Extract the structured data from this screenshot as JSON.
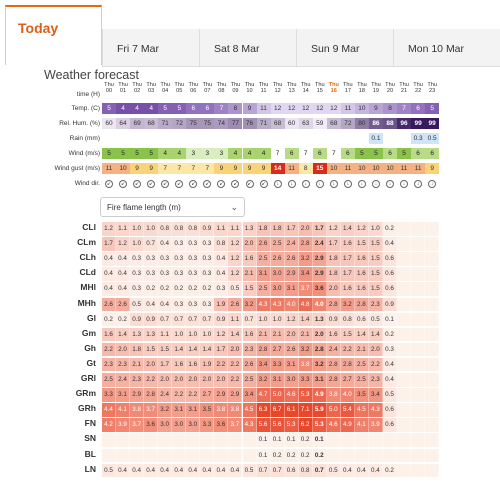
{
  "tabs": {
    "today": "Today",
    "days": [
      "Fri 7 Mar",
      "Sat 8 Mar",
      "Sun 9 Mar",
      "Mon 10 Mar"
    ]
  },
  "section_title": "Weather forecast",
  "row_labels": [
    "time (H)",
    "Temp. (C)",
    "Rel. Hum. (%)",
    "Rain (mm)",
    "Wind (m/s)",
    "Wind gust (m/s)",
    "Wind dir."
  ],
  "hours": [
    {
      "day": "Thu",
      "h": "00"
    },
    {
      "day": "Thu",
      "h": "01"
    },
    {
      "day": "Thu",
      "h": "02"
    },
    {
      "day": "Thu",
      "h": "03"
    },
    {
      "day": "Thu",
      "h": "04"
    },
    {
      "day": "Thu",
      "h": "05"
    },
    {
      "day": "Thu",
      "h": "06"
    },
    {
      "day": "Thu",
      "h": "07"
    },
    {
      "day": "Thu",
      "h": "08"
    },
    {
      "day": "Thu",
      "h": "09"
    },
    {
      "day": "Thu",
      "h": "10"
    },
    {
      "day": "Thu",
      "h": "11"
    },
    {
      "day": "Thu",
      "h": "12"
    },
    {
      "day": "Thu",
      "h": "13"
    },
    {
      "day": "Thu",
      "h": "14"
    },
    {
      "day": "Thu",
      "h": "15"
    },
    {
      "day": "Thu",
      "h": "16"
    },
    {
      "day": "Thu",
      "h": "17"
    },
    {
      "day": "Thu",
      "h": "18"
    },
    {
      "day": "Thu",
      "h": "19"
    },
    {
      "day": "Thu",
      "h": "20"
    },
    {
      "day": "Thu",
      "h": "21"
    },
    {
      "day": "Thu",
      "h": "22"
    },
    {
      "day": "Thu",
      "h": "23"
    }
  ],
  "current_hour_index": 16,
  "temp": [
    "5",
    "4",
    "4",
    "4",
    "5",
    "5",
    "6",
    "6",
    "7",
    "8",
    "9",
    "11",
    "12",
    "12",
    "12",
    "12",
    "12",
    "11",
    "10",
    "9",
    "8",
    "7",
    "6",
    "5"
  ],
  "humidity": [
    "60",
    "64",
    "69",
    "68",
    "71",
    "72",
    "75",
    "75",
    "74",
    "77",
    "76",
    "71",
    "68",
    "60",
    "63",
    "59",
    "68",
    "72",
    "80",
    "86",
    "88",
    "96",
    "99",
    "99"
  ],
  "rain": [
    "",
    "",
    "",
    "",
    "",
    "",
    "",
    "",
    "",
    "",
    "",
    "",
    "",
    "",
    "",
    "",
    "",
    "",
    "",
    "0.1",
    "",
    "",
    "0.3",
    "0.5"
  ],
  "wind": [
    "5",
    "5",
    "5",
    "5",
    "4",
    "4",
    "3",
    "3",
    "3",
    "4",
    "4",
    "4",
    "7",
    "6",
    "7",
    "6",
    "7",
    "6",
    "5",
    "5",
    "6",
    "5",
    "6",
    "6"
  ],
  "gust": [
    "11",
    "10",
    "9",
    "9",
    "7",
    "7",
    "7",
    "7",
    "9",
    "9",
    "9",
    "9",
    "14",
    "11",
    "8",
    "15",
    "10",
    "11",
    "10",
    "10",
    "10",
    "11",
    "11",
    "9"
  ],
  "wind_dir": [
    "↙",
    "↙",
    "↙",
    "↙",
    "↙",
    "↙",
    "↙",
    "↙",
    "↙",
    "↙",
    "↙",
    "↙",
    "↓",
    "↓",
    "↓",
    "↓",
    "↓",
    "↓",
    "↓",
    "↓",
    "↓",
    "↓",
    "↓",
    "↓"
  ],
  "dropdown": {
    "value": "Fire flame length (m)",
    "chevron": "⌄"
  },
  "fire_rows": [
    {
      "label": "CLl",
      "values": [
        "1.2",
        "1.1",
        "1.0",
        "1.0",
        "0.8",
        "0.8",
        "0.8",
        "0.9",
        "1.1",
        "1.1",
        "1.3",
        "1.8",
        "1.8",
        "1.7",
        "2.0",
        "1.7",
        "1.2",
        "1.4",
        "1.2",
        "1.0",
        "0.2",
        "",
        "",
        ""
      ]
    },
    {
      "label": "CLm",
      "values": [
        "1.7",
        "1.2",
        "1.0",
        "0.7",
        "0.4",
        "0.3",
        "0.3",
        "0.3",
        "0.8",
        "1.2",
        "2.0",
        "2.6",
        "2.5",
        "2.4",
        "2.8",
        "2.4",
        "1.7",
        "1.6",
        "1.5",
        "1.5",
        "0.4",
        "",
        "",
        ""
      ]
    },
    {
      "label": "CLh",
      "values": [
        "0.4",
        "0.4",
        "0.3",
        "0.3",
        "0.3",
        "0.3",
        "0.3",
        "0.3",
        "0.4",
        "1.2",
        "1.6",
        "2.5",
        "2.6",
        "2.6",
        "3.2",
        "2.9",
        "1.8",
        "1.7",
        "1.6",
        "1.5",
        "0.6",
        "",
        "",
        ""
      ]
    },
    {
      "label": "CLd",
      "values": [
        "0.4",
        "0.4",
        "0.3",
        "0.3",
        "0.3",
        "0.3",
        "0.3",
        "0.3",
        "0.4",
        "1.2",
        "2.1",
        "3.1",
        "3.0",
        "2.9",
        "3.4",
        "2.9",
        "1.8",
        "1.7",
        "1.6",
        "1.5",
        "0.6",
        "",
        "",
        ""
      ]
    },
    {
      "label": "MHl",
      "values": [
        "0.4",
        "0.4",
        "0.3",
        "0.2",
        "0.2",
        "0.2",
        "0.2",
        "0.2",
        "0.3",
        "0.5",
        "1.5",
        "2.5",
        "3.0",
        "3.1",
        "3.7",
        "3.6",
        "2.0",
        "1.6",
        "1.6",
        "1.5",
        "0.6",
        "",
        "",
        ""
      ]
    },
    {
      "label": "MHh",
      "values": [
        "2.6",
        "2.6",
        "0.5",
        "0.4",
        "0.4",
        "0.3",
        "0.3",
        "0.3",
        "1.9",
        "2.6",
        "3.2",
        "4.3",
        "4.3",
        "4.0",
        "4.8",
        "4.0",
        "2.8",
        "3.2",
        "2.8",
        "2.3",
        "0.9",
        "",
        "",
        ""
      ]
    },
    {
      "label": "Gl",
      "values": [
        "0.2",
        "0.2",
        "0.9",
        "0.9",
        "0.7",
        "0.7",
        "0.7",
        "0.7",
        "0.9",
        "1.1",
        "0.7",
        "1.0",
        "1.0",
        "1.2",
        "1.4",
        "1.3",
        "0.9",
        "0.8",
        "0.6",
        "0.5",
        "0.1",
        "",
        "",
        ""
      ]
    },
    {
      "label": "Gm",
      "values": [
        "1.6",
        "1.4",
        "1.3",
        "1.3",
        "1.1",
        "1.0",
        "1.0",
        "1.0",
        "1.2",
        "1.4",
        "1.6",
        "2.1",
        "2.1",
        "2.0",
        "2.1",
        "2.0",
        "1.6",
        "1.5",
        "1.4",
        "1.4",
        "0.2",
        "",
        "",
        ""
      ]
    },
    {
      "label": "Gh",
      "values": [
        "2.2",
        "2.0",
        "1.8",
        "1.5",
        "1.5",
        "1.4",
        "1.4",
        "1.4",
        "1.7",
        "2.0",
        "2.3",
        "2.8",
        "2.7",
        "2.6",
        "3.2",
        "2.8",
        "2.4",
        "2.2",
        "2.1",
        "2.0",
        "0.3",
        "",
        "",
        ""
      ]
    },
    {
      "label": "Gt",
      "values": [
        "2.3",
        "2.3",
        "2.1",
        "2.0",
        "1.7",
        "1.6",
        "1.6",
        "1.9",
        "2.2",
        "2.2",
        "2.6",
        "3.4",
        "3.3",
        "3.1",
        "3.8",
        "3.2",
        "2.8",
        "2.8",
        "2.5",
        "2.2",
        "0.4",
        "",
        "",
        ""
      ]
    },
    {
      "label": "GRl",
      "values": [
        "2.5",
        "2.4",
        "2.3",
        "2.2",
        "2.0",
        "2.0",
        "2.0",
        "2.0",
        "2.0",
        "2.2",
        "2.5",
        "3.2",
        "3.1",
        "3.0",
        "3.3",
        "3.1",
        "2.8",
        "2.7",
        "2.5",
        "2.3",
        "0.4",
        "",
        "",
        ""
      ]
    },
    {
      "label": "GRm",
      "values": [
        "3.3",
        "3.1",
        "2.9",
        "2.8",
        "2.4",
        "2.2",
        "2.2",
        "2.7",
        "2.9",
        "2.9",
        "3.4",
        "4.7",
        "5.0",
        "4.6",
        "5.3",
        "4.9",
        "3.8",
        "4.0",
        "3.5",
        "3.4",
        "0.5",
        "",
        "",
        ""
      ]
    },
    {
      "label": "GRh",
      "values": [
        "4.4",
        "4.1",
        "3.8",
        "3.7",
        "3.2",
        "3.1",
        "3.1",
        "3.5",
        "3.8",
        "3.8",
        "4.5",
        "6.3",
        "6.7",
        "6.1",
        "7.1",
        "5.9",
        "5.0",
        "5.4",
        "4.5",
        "4.3",
        "0.6",
        "",
        "",
        ""
      ]
    },
    {
      "label": "FN",
      "values": [
        "4.2",
        "3.9",
        "3.7",
        "3.6",
        "3.0",
        "3.0",
        "3.0",
        "3.3",
        "3.6",
        "3.7",
        "4.3",
        "5.6",
        "5.6",
        "5.3",
        "6.2",
        "5.3",
        "4.6",
        "4.9",
        "4.1",
        "3.9",
        "0.6",
        "",
        "",
        ""
      ]
    },
    {
      "label": "SN",
      "values": [
        "",
        "",
        "",
        "",
        "",
        "",
        "",
        "",
        "",
        "",
        "",
        "0.1",
        "0.1",
        "0.1",
        "0.2",
        "0.1",
        "",
        "",
        "",
        "",
        "",
        "",
        "",
        ""
      ]
    },
    {
      "label": "BL",
      "values": [
        "",
        "",
        "",
        "",
        "",
        "",
        "",
        "",
        "",
        "",
        "",
        "0.1",
        "0.2",
        "0.2",
        "0.2",
        "0.2",
        "",
        "",
        "",
        "",
        "",
        "",
        "",
        ""
      ]
    },
    {
      "label": "LN",
      "values": [
        "0.5",
        "0.4",
        "0.4",
        "0.4",
        "0.4",
        "0.4",
        "0.4",
        "0.4",
        "0.4",
        "0.4",
        "0.5",
        "0.7",
        "0.7",
        "0.6",
        "0.8",
        "0.7",
        "0.5",
        "0.4",
        "0.4",
        "0.4",
        "0.2",
        "",
        "",
        ""
      ]
    }
  ],
  "colors": {
    "accent": "#e36a12",
    "temp_purple": "#6b3fa0",
    "wind_green": "#8bc34a",
    "gust_orange": "#f0b040",
    "fire_low": "#fdf4ee",
    "fire_high": "#e8472a"
  }
}
